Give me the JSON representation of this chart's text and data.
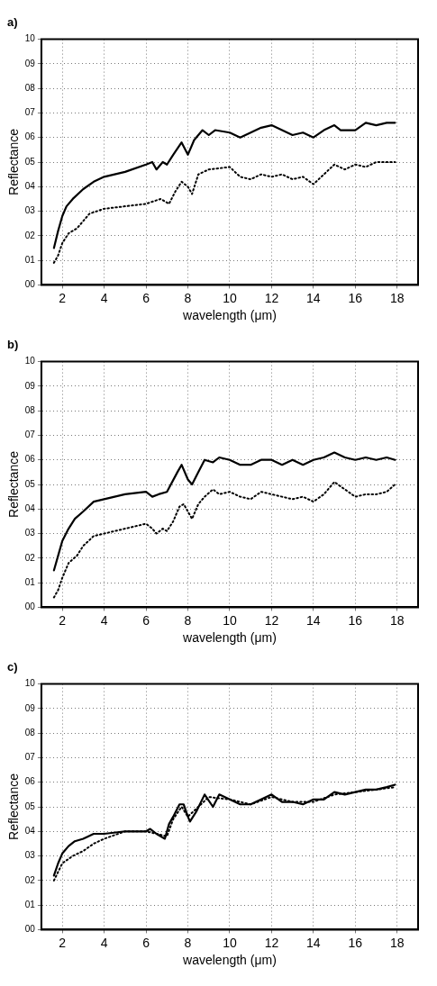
{
  "chart_data": [
    {
      "type": "line",
      "title": "a)",
      "xlabel": "wavelength (μm)",
      "ylabel": "Reflectance",
      "xlim": [
        1,
        19
      ],
      "xticks": [
        2,
        4,
        6,
        8,
        10,
        12,
        14,
        16,
        18
      ],
      "ylim": [
        0,
        10
      ],
      "yticks": [
        {
          "value": 0,
          "label": "00"
        },
        {
          "value": 1,
          "label": "01"
        },
        {
          "value": 2,
          "label": "02"
        },
        {
          "value": 3,
          "label": "03"
        },
        {
          "value": 4,
          "label": "04"
        },
        {
          "value": 5,
          "label": "05"
        },
        {
          "value": 6,
          "label": "06"
        },
        {
          "value": 7,
          "label": "07"
        },
        {
          "value": 8,
          "label": "08"
        },
        {
          "value": 9,
          "label": "09"
        },
        {
          "value": 10,
          "label": "10"
        }
      ],
      "grid": true,
      "series": [
        {
          "color": "#000000",
          "line_style": "solid",
          "x": [
            1.6,
            1.8,
            2,
            2.2,
            2.5,
            3,
            3.5,
            4,
            5,
            6,
            6.3,
            6.5,
            6.8,
            7,
            7.3,
            7.7,
            8,
            8.3,
            8.7,
            9,
            9.3,
            10,
            10.5,
            11,
            11.5,
            12,
            12.5,
            13,
            13.5,
            14,
            14.5,
            15,
            15.3,
            16,
            16.5,
            17,
            17.5,
            17.9
          ],
          "values": [
            1.5,
            2.2,
            2.8,
            3.2,
            3.5,
            3.9,
            4.2,
            4.4,
            4.6,
            4.9,
            5,
            4.7,
            5,
            4.9,
            5.3,
            5.8,
            5.3,
            5.9,
            6.3,
            6.1,
            6.3,
            6.2,
            6,
            6.2,
            6.4,
            6.5,
            6.3,
            6.1,
            6.2,
            6,
            6.3,
            6.5,
            6.3,
            6.3,
            6.6,
            6.5,
            6.6,
            6.6
          ]
        },
        {
          "color": "#000000",
          "line_style": "dotted",
          "x": [
            1.6,
            1.8,
            2,
            2.3,
            2.7,
            3.3,
            4,
            5,
            6,
            6.7,
            7.1,
            7.4,
            7.7,
            8,
            8.2,
            8.5,
            9,
            10,
            10.5,
            11,
            11.5,
            12,
            12.5,
            13,
            13.5,
            14,
            14.5,
            15,
            15.5,
            16,
            16.5,
            17,
            17.9
          ],
          "values": [
            0.9,
            1.2,
            1.7,
            2.1,
            2.3,
            2.9,
            3.1,
            3.2,
            3.3,
            3.5,
            3.3,
            3.8,
            4.2,
            4,
            3.7,
            4.5,
            4.7,
            4.8,
            4.4,
            4.3,
            4.5,
            4.4,
            4.5,
            4.3,
            4.4,
            4.1,
            4.5,
            4.9,
            4.7,
            4.9,
            4.8,
            5,
            5
          ]
        }
      ]
    },
    {
      "type": "line",
      "title": "b)",
      "xlabel": "wavelength (μm)",
      "ylabel": "Reflectance",
      "xlim": [
        1,
        19
      ],
      "xticks": [
        2,
        4,
        6,
        8,
        10,
        12,
        14,
        16,
        18
      ],
      "ylim": [
        0,
        10
      ],
      "yticks": [
        {
          "value": 0,
          "label": "00"
        },
        {
          "value": 1,
          "label": "01"
        },
        {
          "value": 2,
          "label": "02"
        },
        {
          "value": 3,
          "label": "03"
        },
        {
          "value": 4,
          "label": "04"
        },
        {
          "value": 5,
          "label": "05"
        },
        {
          "value": 6,
          "label": "06"
        },
        {
          "value": 7,
          "label": "07"
        },
        {
          "value": 8,
          "label": "08"
        },
        {
          "value": 9,
          "label": "09"
        },
        {
          "value": 10,
          "label": "10"
        }
      ],
      "grid": true,
      "series": [
        {
          "color": "#000000",
          "line_style": "solid",
          "x": [
            1.6,
            1.8,
            2,
            2.3,
            2.6,
            3,
            3.5,
            4,
            5,
            6,
            6.3,
            6.6,
            7,
            7.5,
            7.7,
            8,
            8.2,
            8.5,
            8.8,
            9.2,
            9.5,
            10,
            10.5,
            11,
            11.5,
            12,
            12.5,
            13,
            13.5,
            14,
            14.5,
            15,
            15.5,
            16,
            16.5,
            17,
            17.5,
            17.9
          ],
          "values": [
            1.5,
            2.1,
            2.7,
            3.2,
            3.6,
            3.9,
            4.3,
            4.4,
            4.6,
            4.7,
            4.5,
            4.6,
            4.7,
            5.5,
            5.8,
            5.2,
            5,
            5.5,
            6,
            5.9,
            6.1,
            6,
            5.8,
            5.8,
            6,
            6,
            5.8,
            6,
            5.8,
            6,
            6.1,
            6.3,
            6.1,
            6,
            6.1,
            6,
            6.1,
            6
          ]
        },
        {
          "color": "#000000",
          "line_style": "dotted",
          "x": [
            1.6,
            1.8,
            2,
            2.3,
            2.7,
            3,
            3.5,
            4,
            5,
            6,
            6.3,
            6.5,
            6.8,
            7,
            7.3,
            7.6,
            7.8,
            8,
            8.2,
            8.5,
            8.8,
            9.2,
            9.5,
            10,
            10.5,
            11,
            11.5,
            12,
            12.5,
            13,
            13.5,
            14,
            14.5,
            15,
            15.5,
            16,
            16.5,
            17,
            17.5,
            17.9
          ],
          "values": [
            0.4,
            0.7,
            1.2,
            1.8,
            2.1,
            2.5,
            2.9,
            3,
            3.2,
            3.4,
            3.2,
            3,
            3.2,
            3.1,
            3.5,
            4.1,
            4.2,
            3.9,
            3.6,
            4.2,
            4.5,
            4.8,
            4.6,
            4.7,
            4.5,
            4.4,
            4.7,
            4.6,
            4.5,
            4.4,
            4.5,
            4.3,
            4.6,
            5.1,
            4.8,
            4.5,
            4.6,
            4.6,
            4.7,
            5
          ]
        }
      ]
    },
    {
      "type": "line",
      "title": "c)",
      "xlabel": "wavelength (μm)",
      "ylabel": "Reflectance",
      "xlim": [
        1,
        19
      ],
      "xticks": [
        2,
        4,
        6,
        8,
        10,
        12,
        14,
        16,
        18
      ],
      "ylim": [
        0,
        10
      ],
      "yticks": [
        {
          "value": 0,
          "label": "00"
        },
        {
          "value": 1,
          "label": "01"
        },
        {
          "value": 2,
          "label": "02"
        },
        {
          "value": 3,
          "label": "03"
        },
        {
          "value": 4,
          "label": "04"
        },
        {
          "value": 5,
          "label": "05"
        },
        {
          "value": 6,
          "label": "06"
        },
        {
          "value": 7,
          "label": "07"
        },
        {
          "value": 8,
          "label": "08"
        },
        {
          "value": 9,
          "label": "09"
        },
        {
          "value": 10,
          "label": "10"
        }
      ],
      "grid": true,
      "series": [
        {
          "color": "#000000",
          "line_style": "solid",
          "x": [
            1.6,
            1.8,
            2,
            2.3,
            2.6,
            3,
            3.5,
            4,
            5,
            6,
            6.2,
            6.5,
            6.9,
            7.1,
            7.3,
            7.6,
            7.8,
            8,
            8.1,
            8.4,
            8.8,
            9.2,
            9.5,
            10,
            10.5,
            11,
            11.5,
            12,
            12.5,
            13,
            13.5,
            14,
            14.5,
            15,
            15.5,
            16,
            16.5,
            17,
            17.5,
            17.9
          ],
          "values": [
            2.2,
            2.7,
            3.1,
            3.4,
            3.6,
            3.7,
            3.9,
            3.9,
            4,
            4,
            4.1,
            3.9,
            3.7,
            4.3,
            4.6,
            5.1,
            5.1,
            4.6,
            4.4,
            4.8,
            5.5,
            5,
            5.5,
            5.3,
            5.1,
            5.1,
            5.3,
            5.5,
            5.2,
            5.2,
            5.1,
            5.3,
            5.3,
            5.6,
            5.5,
            5.6,
            5.7,
            5.7,
            5.8,
            5.9
          ]
        },
        {
          "color": "#000000",
          "line_style": "dotted",
          "x": [
            1.6,
            2,
            2.5,
            3,
            3.5,
            4,
            5,
            6,
            6.5,
            7,
            7.3,
            7.7,
            8,
            8.5,
            9,
            10,
            11,
            12,
            13,
            14,
            15,
            16,
            17,
            17.9
          ],
          "values": [
            2,
            2.7,
            3,
            3.2,
            3.5,
            3.7,
            4,
            4,
            3.9,
            3.8,
            4.5,
            5,
            4.6,
            5,
            5.4,
            5.3,
            5.1,
            5.4,
            5.2,
            5.2,
            5.5,
            5.6,
            5.7,
            5.8
          ]
        }
      ]
    }
  ]
}
